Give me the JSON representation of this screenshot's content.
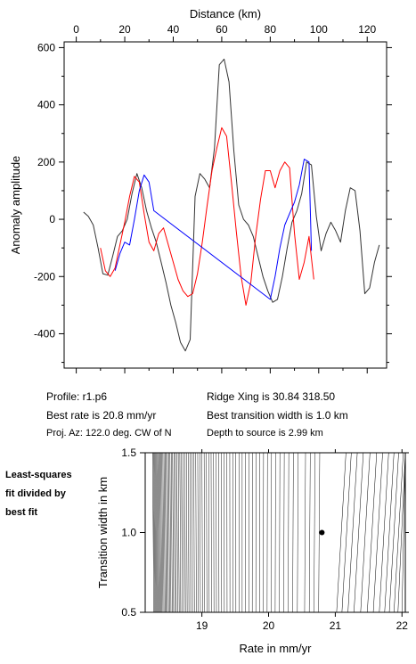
{
  "chart_data": [
    {
      "type": "line",
      "xlabel": "Distance (km)",
      "ylabel": "Anomaly amplitude",
      "xlim": [
        -5,
        128
      ],
      "ylim": [
        -520,
        620
      ],
      "x_ticks": [
        0,
        20,
        40,
        60,
        80,
        100,
        120
      ],
      "y_ticks": [
        -400,
        -200,
        0,
        200,
        400,
        600
      ],
      "grid": false,
      "series": [
        {
          "color": "#333333",
          "x": [
            3,
            5,
            7,
            9,
            11,
            13,
            15,
            17,
            19,
            21,
            23,
            25,
            27,
            29,
            31,
            33,
            35,
            37,
            39,
            41,
            43,
            45,
            47,
            49,
            51,
            53,
            55,
            57,
            59,
            61,
            63,
            65,
            67,
            69,
            71,
            73,
            75,
            77,
            79,
            81,
            83,
            85,
            87,
            89,
            91,
            93,
            95,
            97,
            99,
            101,
            103,
            105,
            107,
            109,
            111,
            113,
            115,
            117,
            119,
            121,
            123,
            125
          ],
          "y": [
            25,
            10,
            -20,
            -100,
            -190,
            -195,
            -130,
            -60,
            -40,
            0,
            90,
            160,
            110,
            30,
            -30,
            -80,
            -150,
            -220,
            -300,
            -360,
            -430,
            -460,
            -420,
            80,
            160,
            140,
            110,
            250,
            540,
            560,
            480,
            240,
            50,
            0,
            -20,
            -60,
            -130,
            -200,
            -250,
            -290,
            -280,
            -200,
            -100,
            -10,
            30,
            90,
            200,
            190,
            10,
            -110,
            -50,
            -10,
            -40,
            -80,
            30,
            110,
            100,
            -40,
            -260,
            -240,
            -150,
            -90
          ]
        },
        {
          "color": "#ff0000",
          "x": [
            10,
            12,
            14,
            16,
            18,
            20,
            22,
            24,
            26,
            28,
            30,
            32,
            34,
            36,
            38,
            40,
            42,
            44,
            46,
            48,
            50,
            52,
            54,
            56,
            58,
            60,
            62,
            64,
            66,
            68,
            70,
            72,
            74,
            76,
            78,
            80,
            82,
            84,
            86,
            88,
            90,
            92,
            94,
            96,
            98
          ],
          "y": [
            -100,
            -180,
            -200,
            -170,
            -90,
            -10,
            80,
            150,
            130,
            20,
            -80,
            -110,
            -50,
            -30,
            -90,
            -150,
            -210,
            -250,
            -270,
            -260,
            -190,
            -80,
            50,
            170,
            250,
            320,
            290,
            130,
            -40,
            -200,
            -300,
            -220,
            -60,
            70,
            170,
            170,
            110,
            170,
            200,
            180,
            -50,
            -210,
            -150,
            -60,
            -210
          ]
        },
        {
          "color": "#0000ff",
          "x": [
            16,
            18,
            20,
            22,
            24,
            26,
            28,
            30,
            32,
            80,
            82,
            84,
            86,
            88,
            90,
            92,
            94,
            96,
            97
          ],
          "y": [
            -180,
            -120,
            -80,
            -90,
            0,
            100,
            155,
            130,
            30,
            -280,
            -200,
            -100,
            -20,
            20,
            60,
            120,
            210,
            200,
            -110
          ]
        }
      ]
    },
    {
      "type": "contour",
      "xlabel": "Rate in mm/yr",
      "ylabel": "Transition width in km",
      "xlim": [
        18.15,
        22.05
      ],
      "ylim": [
        0.5,
        1.5
      ],
      "x_ticks": [
        19,
        20,
        21,
        22
      ],
      "y_ticks": [
        0.5,
        1.0,
        1.5
      ],
      "best_fit_point": {
        "x": 20.8,
        "y": 1.0
      }
    }
  ],
  "info": {
    "profile": "Profile: r1.p6",
    "best_rate": "Best rate is 20.8 mm/yr",
    "proj_az": "Proj. Az: 122.0 deg. CW of N",
    "ridge_xing": "Ridge Xing is 30.84 318.50",
    "best_transition": "Best transition width is 1.0 km",
    "depth": "Depth to source is   2.99 km"
  },
  "side_label": {
    "line1": "Least-squares",
    "line2": "fit divided by",
    "line3": "best fit"
  }
}
